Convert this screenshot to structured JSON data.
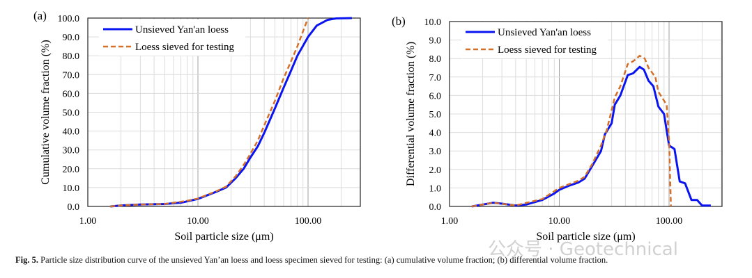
{
  "chart_data": [
    {
      "type": "line",
      "panel_label": "(a)",
      "title": "",
      "xlabel": "Soil particle size (μm)",
      "ylabel": "Cumulative volume fraction (%)",
      "xscale": "log",
      "xlim": [
        1,
        300
      ],
      "ylim": [
        0,
        100
      ],
      "ystep": 10,
      "xticks": [
        "1.00",
        "10.00",
        "100.00"
      ],
      "yticks": [
        "0.0",
        "10.0",
        "20.0",
        "30.0",
        "40.0",
        "50.0",
        "60.0",
        "70.0",
        "80.0",
        "90.0",
        "100.0"
      ],
      "grid": true,
      "legend": "top-left",
      "series": [
        {
          "name": "Unsieved Yan'an loess",
          "color": "#0a14f0",
          "style": "solid",
          "x": [
            1.6,
            2,
            3,
            5,
            7,
            8,
            10,
            15,
            18,
            22,
            26,
            30,
            35,
            40,
            50,
            60,
            70,
            80,
            100,
            120,
            150,
            180,
            250
          ],
          "y": [
            0,
            0.5,
            1,
            1.3,
            2,
            2.7,
            4,
            8,
            10,
            15,
            20,
            26,
            32,
            39,
            52,
            63,
            72,
            80,
            90,
            96,
            99,
            99.8,
            100
          ]
        },
        {
          "name": "Loess sieved for testing",
          "color": "#d4702a",
          "style": "dashed",
          "x": [
            1.6,
            2,
            3,
            5,
            8,
            10,
            15,
            18,
            22,
            26,
            30,
            35,
            40,
            50,
            60,
            70,
            80,
            90,
            100
          ],
          "y": [
            0,
            0.5,
            1,
            1.3,
            3,
            4.2,
            8.3,
            10.5,
            16,
            22,
            28,
            35,
            43,
            56,
            68,
            77,
            85,
            93,
            100
          ]
        }
      ]
    },
    {
      "type": "line",
      "panel_label": "(b)",
      "title": "",
      "xlabel": "Soil particle size (μm)",
      "ylabel": "Differential volume fraction (%)",
      "xscale": "log",
      "xlim": [
        1,
        300
      ],
      "ylim": [
        0,
        10
      ],
      "ystep": 1,
      "xticks": [
        "1.00",
        "10.00",
        "100.00"
      ],
      "yticks": [
        "0.0",
        "1.0",
        "2.0",
        "3.0",
        "4.0",
        "5.0",
        "6.0",
        "7.0",
        "8.0",
        "9.0",
        "10.0"
      ],
      "grid": true,
      "legend": "top-left",
      "series": [
        {
          "name": "Unsieved Yan'an loess",
          "color": "#0a14f0",
          "style": "solid",
          "x": [
            1.6,
            2,
            2.5,
            3,
            4,
            5,
            7,
            9,
            10,
            12,
            15,
            17,
            20,
            24,
            26,
            30,
            32,
            36,
            42,
            47,
            54,
            59,
            65,
            72,
            80,
            90,
            100,
            112,
            125,
            140,
            160,
            180,
            200,
            240
          ],
          "y": [
            0,
            0.1,
            0.2,
            0.15,
            0.05,
            0.1,
            0.35,
            0.7,
            0.9,
            1.1,
            1.3,
            1.5,
            2.2,
            3.0,
            3.9,
            4.5,
            5.5,
            6.0,
            7.1,
            7.2,
            7.55,
            7.4,
            6.8,
            6.5,
            5.4,
            5.0,
            3.3,
            3.1,
            1.35,
            1.25,
            0.35,
            0.35,
            0.05,
            0.05
          ]
        },
        {
          "name": "Loess sieved for testing",
          "color": "#d4702a",
          "style": "dashed",
          "x": [
            1.6,
            2.5,
            4,
            7,
            10,
            15,
            17,
            20,
            24,
            27,
            32,
            36,
            42,
            47,
            54,
            60,
            65,
            75,
            80,
            95,
            100,
            104
          ],
          "y": [
            0,
            0.2,
            0.05,
            0.4,
            1.0,
            1.4,
            1.6,
            2.3,
            3.3,
            4.1,
            5.9,
            6.5,
            7.7,
            7.85,
            8.15,
            8.0,
            7.5,
            7.0,
            6.2,
            5.5,
            3.6,
            0
          ]
        }
      ]
    }
  ],
  "caption": {
    "label": "Fig. 5.",
    "text": " Particle size distribution curve of the unsieved Yan’an loess and loess specimen sieved for testing: (a) cumulative volume fraction; (b) differential volume fraction."
  },
  "watermark": "公众号 · Geotechnical"
}
